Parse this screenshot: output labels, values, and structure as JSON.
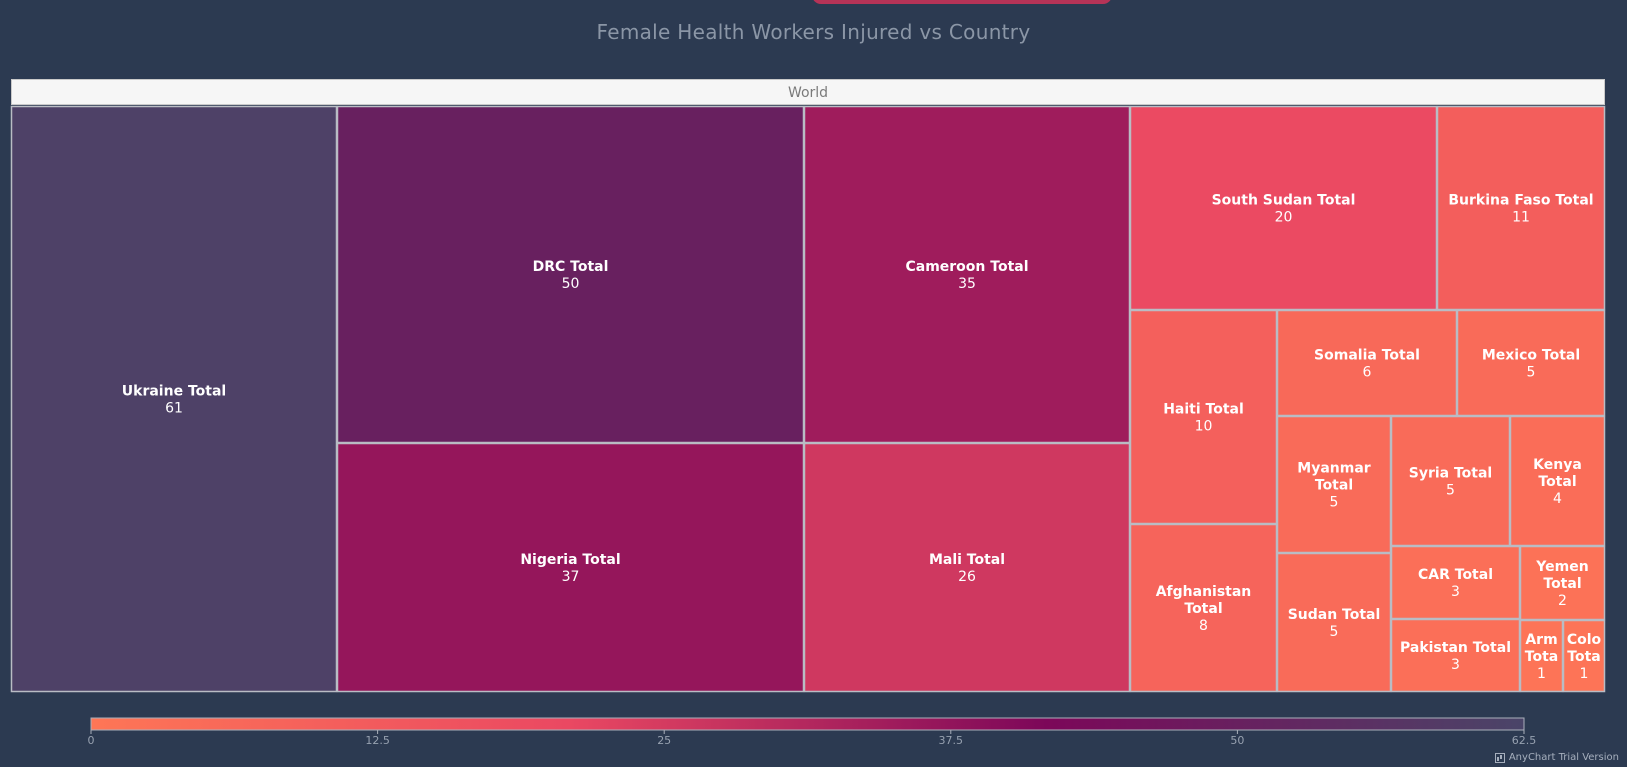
{
  "chart_data": {
    "type": "treemap",
    "title": "Female Health Workers Injured vs Country",
    "root_label": "World",
    "nodes": [
      {
        "name": "Ukraine Total",
        "value": 61
      },
      {
        "name": "DRC Total",
        "value": 50
      },
      {
        "name": "Nigeria Total",
        "value": 37
      },
      {
        "name": "Cameroon Total",
        "value": 35
      },
      {
        "name": "Mali Total",
        "value": 26
      },
      {
        "name": "South Sudan Total",
        "value": 20
      },
      {
        "name": "Burkina Faso Total",
        "value": 11
      },
      {
        "name": "Haiti Total",
        "value": 10
      },
      {
        "name": "Afghanistan Total",
        "value": 8
      },
      {
        "name": "Somalia Total",
        "value": 6
      },
      {
        "name": "Mexico Total",
        "value": 5
      },
      {
        "name": "Myanmar Total",
        "value": 5
      },
      {
        "name": "Syria Total",
        "value": 5
      },
      {
        "name": "Sudan Total",
        "value": 5
      },
      {
        "name": "Kenya Total",
        "value": 4
      },
      {
        "name": "CAR Total",
        "value": 3
      },
      {
        "name": "Pakistan Total",
        "value": 3
      },
      {
        "name": "Yemen Total",
        "value": 2
      },
      {
        "name": "Arm Tota",
        "value": 1
      },
      {
        "name": "Colo Tota",
        "value": 1
      }
    ],
    "color_scale": {
      "range": [
        0,
        62.5
      ],
      "ticks": [
        "0",
        "12.5",
        "25",
        "37.5",
        "50",
        "62.5"
      ],
      "colors": [
        "#fe7656",
        "#ea4862",
        "#7c0759",
        "#4a4568"
      ]
    }
  },
  "credits": "AnyChart Trial Version"
}
